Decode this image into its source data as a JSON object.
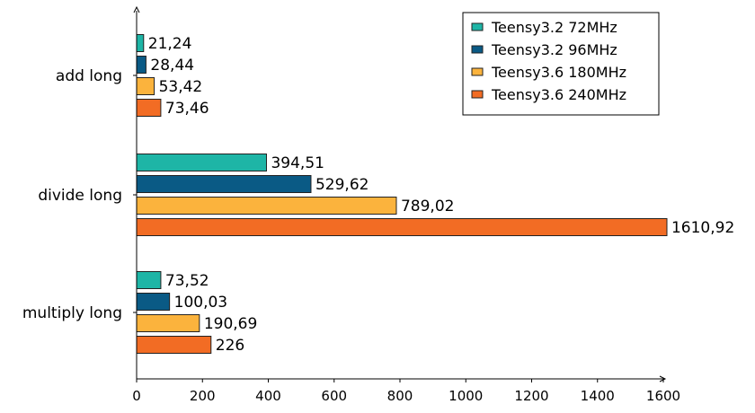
{
  "chart_data": {
    "type": "bar",
    "orientation": "horizontal",
    "categories": [
      "add long",
      "divide long",
      "multiply long"
    ],
    "series": [
      {
        "name": "Teensy3.2 72MHz",
        "color": "#1eb5a6",
        "values": [
          21.24,
          394.51,
          73.52
        ],
        "labels": [
          "21,24",
          "394,51",
          "73,52"
        ]
      },
      {
        "name": "Teensy3.2 96MHz",
        "color": "#0a5a85",
        "values": [
          28.44,
          529.62,
          100.03
        ],
        "labels": [
          "28,44",
          "529,62",
          "100,03"
        ]
      },
      {
        "name": "Teensy3.6 180MHz",
        "color": "#fbb33d",
        "values": [
          53.42,
          789.02,
          190.69
        ],
        "labels": [
          "53,42",
          "789,02",
          "190,69"
        ]
      },
      {
        "name": "Teensy3.6 240MHz",
        "color": "#f26c24",
        "values": [
          73.46,
          1610.92,
          226
        ],
        "labels": [
          "73,46",
          "1610,92",
          "226"
        ]
      }
    ],
    "xlim": [
      0,
      1600
    ],
    "xticks": [
      0,
      200,
      400,
      600,
      800,
      1000,
      1200,
      1400,
      1600
    ],
    "xlabel": "",
    "ylabel": "",
    "title": "",
    "grid": false,
    "legend_position": "top-right"
  }
}
